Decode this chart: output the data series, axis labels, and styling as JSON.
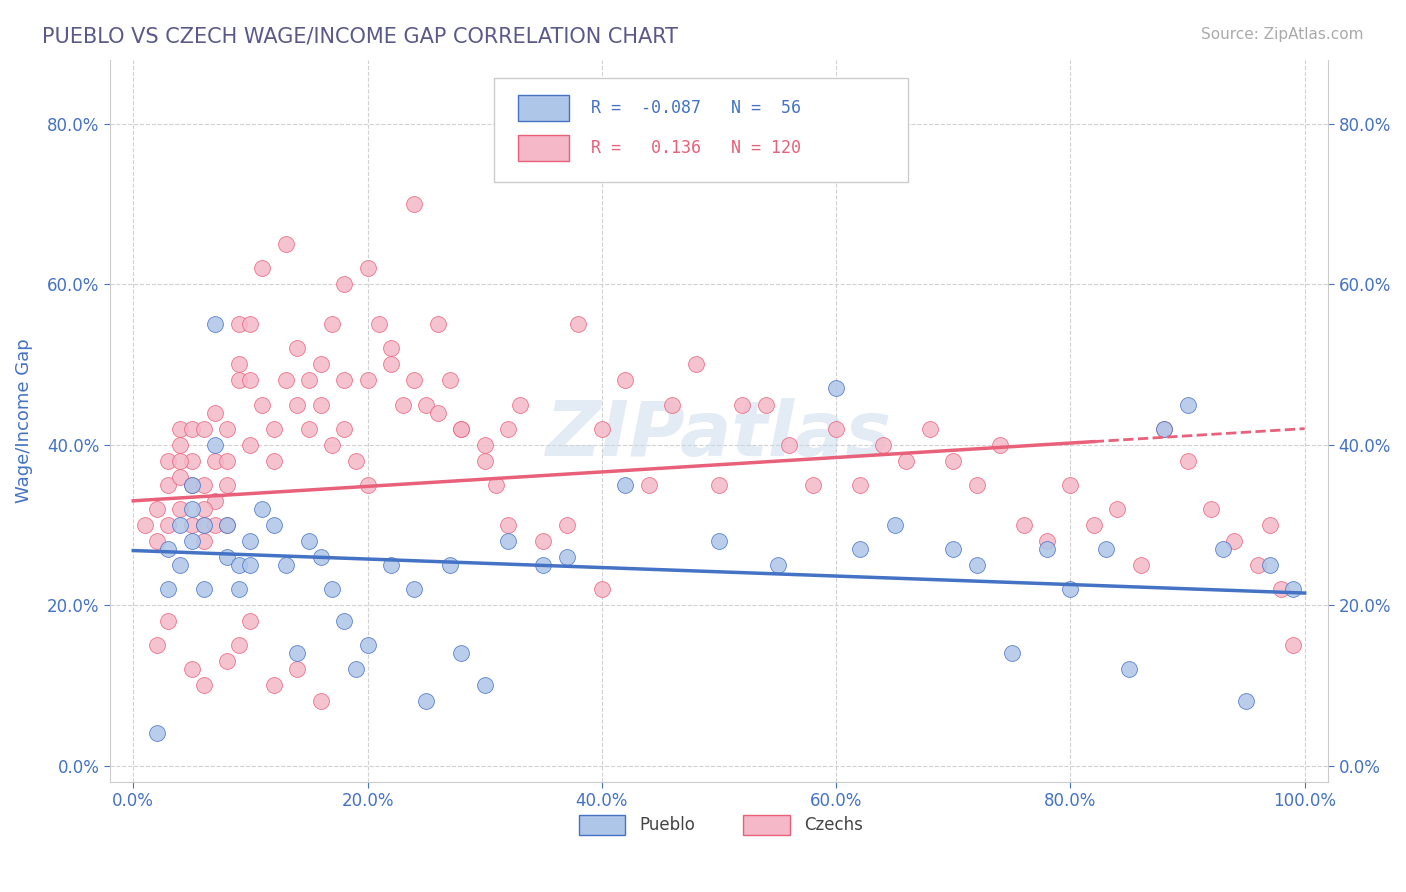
{
  "title": "PUEBLO VS CZECH WAGE/INCOME GAP CORRELATION CHART",
  "source": "Source: ZipAtlas.com",
  "ylabel": "Wage/Income Gap",
  "xlim": [
    -0.02,
    1.02
  ],
  "ylim": [
    -0.02,
    0.88
  ],
  "yticks": [
    0.0,
    0.2,
    0.4,
    0.6,
    0.8
  ],
  "ytick_labels": [
    "0.0%",
    "20.0%",
    "40.0%",
    "60.0%",
    "80.0%"
  ],
  "xticks": [
    0.0,
    0.2,
    0.4,
    0.6,
    0.8,
    1.0
  ],
  "xtick_labels": [
    "0.0%",
    "20.0%",
    "40.0%",
    "60.0%",
    "80.0%",
    "100.0%"
  ],
  "pueblo_color": "#aec6e8",
  "czech_color": "#f4b8c8",
  "pueblo_line_color": "#4472c4",
  "czech_line_color": "#e8607a",
  "pueblo_R": -0.087,
  "pueblo_N": 56,
  "czech_R": 0.136,
  "czech_N": 120,
  "pueblo_scatter_x": [
    0.02,
    0.03,
    0.03,
    0.04,
    0.04,
    0.05,
    0.05,
    0.05,
    0.06,
    0.06,
    0.07,
    0.07,
    0.08,
    0.08,
    0.09,
    0.09,
    0.1,
    0.1,
    0.11,
    0.12,
    0.13,
    0.14,
    0.15,
    0.16,
    0.17,
    0.18,
    0.19,
    0.2,
    0.22,
    0.24,
    0.25,
    0.27,
    0.28,
    0.3,
    0.32,
    0.35,
    0.37,
    0.42,
    0.5,
    0.55,
    0.6,
    0.62,
    0.65,
    0.7,
    0.72,
    0.75,
    0.78,
    0.8,
    0.83,
    0.85,
    0.88,
    0.9,
    0.93,
    0.95,
    0.97,
    0.99
  ],
  "pueblo_scatter_y": [
    0.04,
    0.27,
    0.22,
    0.25,
    0.3,
    0.32,
    0.28,
    0.35,
    0.3,
    0.22,
    0.4,
    0.55,
    0.26,
    0.3,
    0.25,
    0.22,
    0.28,
    0.25,
    0.32,
    0.3,
    0.25,
    0.14,
    0.28,
    0.26,
    0.22,
    0.18,
    0.12,
    0.15,
    0.25,
    0.22,
    0.08,
    0.25,
    0.14,
    0.1,
    0.28,
    0.25,
    0.26,
    0.35,
    0.28,
    0.25,
    0.47,
    0.27,
    0.3,
    0.27,
    0.25,
    0.14,
    0.27,
    0.22,
    0.27,
    0.12,
    0.42,
    0.45,
    0.27,
    0.08,
    0.25,
    0.22
  ],
  "czech_scatter_x": [
    0.01,
    0.02,
    0.02,
    0.03,
    0.03,
    0.03,
    0.04,
    0.04,
    0.04,
    0.04,
    0.05,
    0.05,
    0.05,
    0.05,
    0.06,
    0.06,
    0.06,
    0.06,
    0.07,
    0.07,
    0.07,
    0.07,
    0.08,
    0.08,
    0.08,
    0.09,
    0.09,
    0.09,
    0.1,
    0.1,
    0.1,
    0.11,
    0.11,
    0.12,
    0.12,
    0.13,
    0.13,
    0.14,
    0.14,
    0.15,
    0.15,
    0.16,
    0.16,
    0.17,
    0.17,
    0.18,
    0.18,
    0.19,
    0.2,
    0.2,
    0.21,
    0.22,
    0.23,
    0.24,
    0.25,
    0.26,
    0.27,
    0.28,
    0.3,
    0.31,
    0.32,
    0.33,
    0.35,
    0.37,
    0.38,
    0.4,
    0.42,
    0.44,
    0.46,
    0.48,
    0.5,
    0.52,
    0.54,
    0.56,
    0.58,
    0.6,
    0.62,
    0.64,
    0.66,
    0.68,
    0.7,
    0.72,
    0.74,
    0.76,
    0.78,
    0.8,
    0.82,
    0.84,
    0.86,
    0.88,
    0.9,
    0.92,
    0.94,
    0.96,
    0.97,
    0.98,
    0.99,
    0.02,
    0.03,
    0.05,
    0.06,
    0.08,
    0.09,
    0.1,
    0.12,
    0.14,
    0.16,
    0.18,
    0.2,
    0.22,
    0.24,
    0.26,
    0.28,
    0.3,
    0.32,
    0.35,
    0.4,
    0.04,
    0.06,
    0.08
  ],
  "czech_scatter_y": [
    0.3,
    0.32,
    0.28,
    0.35,
    0.3,
    0.38,
    0.32,
    0.36,
    0.4,
    0.42,
    0.35,
    0.3,
    0.42,
    0.38,
    0.3,
    0.42,
    0.35,
    0.28,
    0.38,
    0.44,
    0.33,
    0.3,
    0.42,
    0.38,
    0.3,
    0.5,
    0.55,
    0.48,
    0.55,
    0.48,
    0.4,
    0.45,
    0.62,
    0.42,
    0.38,
    0.65,
    0.48,
    0.45,
    0.52,
    0.42,
    0.48,
    0.5,
    0.45,
    0.55,
    0.4,
    0.48,
    0.42,
    0.38,
    0.48,
    0.35,
    0.55,
    0.52,
    0.45,
    0.7,
    0.45,
    0.55,
    0.48,
    0.42,
    0.38,
    0.35,
    0.42,
    0.45,
    0.75,
    0.3,
    0.55,
    0.42,
    0.48,
    0.35,
    0.45,
    0.5,
    0.35,
    0.45,
    0.45,
    0.4,
    0.35,
    0.42,
    0.35,
    0.4,
    0.38,
    0.42,
    0.38,
    0.35,
    0.4,
    0.3,
    0.28,
    0.35,
    0.3,
    0.32,
    0.25,
    0.42,
    0.38,
    0.32,
    0.28,
    0.25,
    0.3,
    0.22,
    0.15,
    0.15,
    0.18,
    0.12,
    0.1,
    0.13,
    0.15,
    0.18,
    0.1,
    0.12,
    0.08,
    0.6,
    0.62,
    0.5,
    0.48,
    0.44,
    0.42,
    0.4,
    0.3,
    0.28,
    0.22,
    0.38,
    0.32,
    0.35
  ],
  "watermark": "ZIPatlas",
  "background_color": "#ffffff",
  "grid_color": "#cccccc",
  "title_color": "#5a5a8a",
  "axis_label_color": "#4472c4",
  "tick_color": "#4472c4",
  "pueblo_line_start": 0.268,
  "pueblo_line_end": 0.215,
  "czech_line_start": 0.33,
  "czech_line_end": 0.42
}
